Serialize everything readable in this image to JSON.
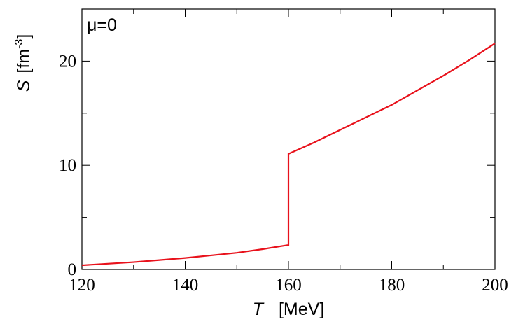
{
  "chart_data": {
    "type": "line",
    "annotation": "μ=0",
    "xlabel": [
      "T",
      "[MeV]"
    ],
    "ylabel": [
      "S",
      "[fm",
      "-3",
      "]"
    ],
    "x": [
      120,
      125,
      130,
      135,
      140,
      145,
      150,
      155,
      160,
      160,
      165,
      170,
      175,
      180,
      185,
      190,
      195,
      200
    ],
    "series": [
      {
        "color": "#e8111b",
        "values": [
          0.4,
          0.55,
          0.7,
          0.9,
          1.1,
          1.35,
          1.6,
          1.95,
          2.35,
          11.1,
          12.2,
          13.4,
          14.6,
          15.8,
          17.2,
          18.6,
          20.1,
          21.7
        ]
      }
    ],
    "xlim": [
      120,
      200
    ],
    "xticks": [
      120,
      140,
      160,
      180,
      200
    ],
    "xminorticks": [
      130,
      150,
      170,
      190
    ],
    "ylim": [
      0,
      25
    ],
    "yticks": [
      0,
      10,
      20
    ],
    "yminorticks": [
      5,
      15
    ]
  }
}
